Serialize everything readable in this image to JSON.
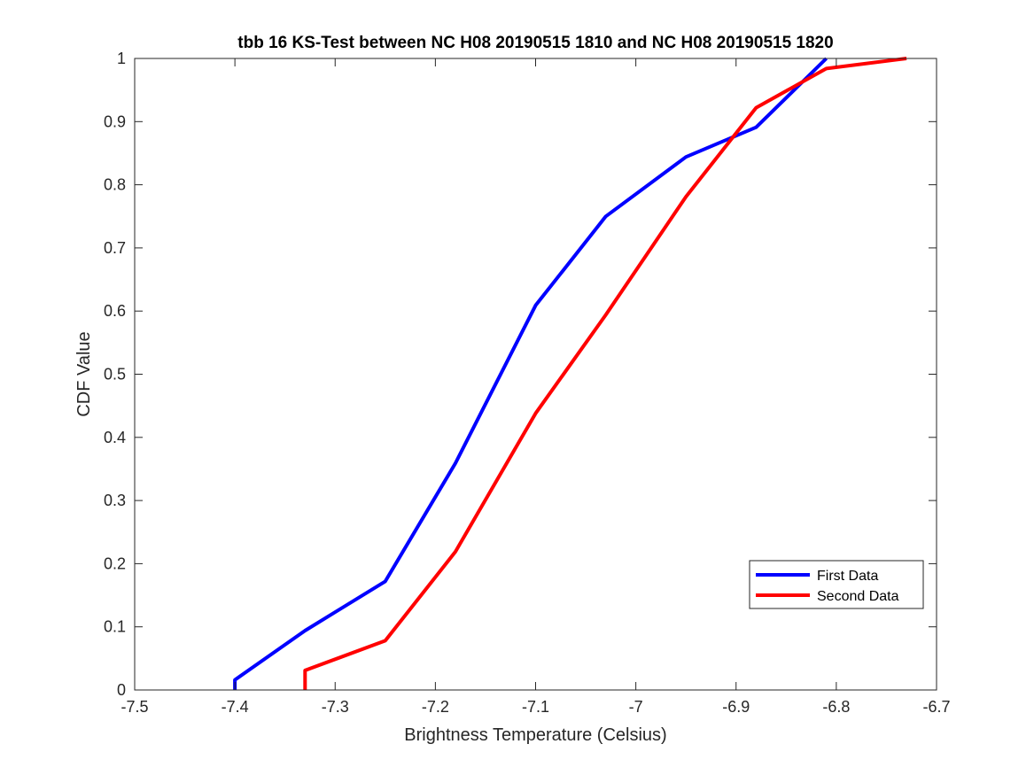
{
  "chart_data": {
    "type": "line",
    "title": "tbb 16 KS-Test between NC H08 20190515 1810 and NC H08 20190515 1820",
    "xlabel": "Brightness Temperature (Celsius)",
    "ylabel": "CDF Value",
    "xlim": [
      -7.5,
      -6.7
    ],
    "ylim": [
      0,
      1
    ],
    "xticks": [
      -7.5,
      -7.4,
      -7.3,
      -7.2,
      -7.1,
      -7,
      -6.9,
      -6.8,
      -6.7
    ],
    "xtick_labels": [
      "-7.5",
      "-7.4",
      "-7.3",
      "-7.2",
      "-7.1",
      "-7",
      "-6.9",
      "-6.8",
      "-6.7"
    ],
    "yticks": [
      0,
      0.1,
      0.2,
      0.3,
      0.4,
      0.5,
      0.6,
      0.7,
      0.8,
      0.9,
      1
    ],
    "ytick_labels": [
      "0",
      "0.1",
      "0.2",
      "0.3",
      "0.4",
      "0.5",
      "0.6",
      "0.7",
      "0.8",
      "0.9",
      "1"
    ],
    "grid": false,
    "box": true,
    "legend_position": "bottom-right",
    "series": [
      {
        "name": "First Data",
        "color": "#0000ff",
        "x": [
          -7.4,
          -7.4,
          -7.33,
          -7.25,
          -7.18,
          -7.1,
          -7.03,
          -6.95,
          -6.88,
          -6.81
        ],
        "y": [
          0,
          0.016,
          0.094,
          0.172,
          0.359,
          0.609,
          0.75,
          0.844,
          0.891,
          1.0
        ]
      },
      {
        "name": "Second Data",
        "color": "#ff0000",
        "x": [
          -7.33,
          -7.33,
          -7.25,
          -7.18,
          -7.1,
          -7.03,
          -6.95,
          -6.88,
          -6.81,
          -6.73
        ],
        "y": [
          0,
          0.031,
          0.078,
          0.219,
          0.438,
          0.594,
          0.781,
          0.922,
          0.984,
          1.0
        ]
      }
    ]
  }
}
